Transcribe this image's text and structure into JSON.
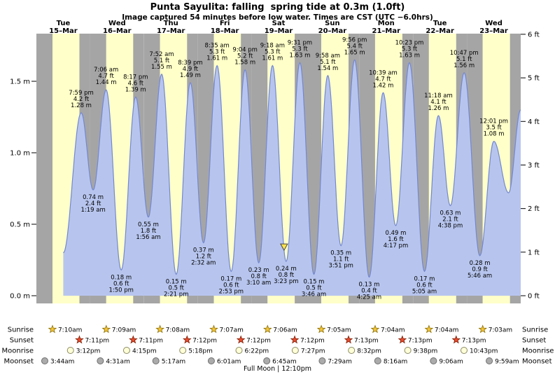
{
  "title": "Punta Sayulita: falling  spring tide at 0.3m (1.0ft)",
  "subtitle": "Image captured 54 minutes before low water. Times are CST (UTC −6.0hrs)",
  "chart_data": {
    "type": "area",
    "description": "Tide height curve over 9 days with high/low tide annotations",
    "grid": false,
    "ylim_m": [
      0,
      1.83
    ],
    "x_axis": {
      "days": [
        {
          "dow": "Tue",
          "date": "15–Mar"
        },
        {
          "dow": "Wed",
          "date": "16–Mar"
        },
        {
          "dow": "Thu",
          "date": "17–Mar"
        },
        {
          "dow": "Fri",
          "date": "18–Mar"
        },
        {
          "dow": "Sat",
          "date": "19–Mar"
        },
        {
          "dow": "Sun",
          "date": "20–Mar"
        },
        {
          "dow": "Mon",
          "date": "21–Mar"
        },
        {
          "dow": "Tue",
          "date": "22–Mar"
        },
        {
          "dow": "Wed",
          "date": "23–Mar"
        }
      ]
    },
    "y_axis_left": {
      "unit": "m",
      "ticks": [
        {
          "label": "1.5 m",
          "value": 1.5
        },
        {
          "label": "1.0 m",
          "value": 1.0
        },
        {
          "label": "0.5 m",
          "value": 0.5
        },
        {
          "label": "0.0 m",
          "value": 0.0
        }
      ]
    },
    "y_axis_right": {
      "unit": "ft",
      "ticks": [
        {
          "label": "6 ft",
          "value": 6
        },
        {
          "label": "5 ft",
          "value": 5
        },
        {
          "label": "4 ft",
          "value": 4
        },
        {
          "label": "3 ft",
          "value": 3
        },
        {
          "label": "2 ft",
          "value": 2
        },
        {
          "label": "1 ft",
          "value": 1
        },
        {
          "label": "0 ft",
          "value": 0
        }
      ]
    },
    "tide_events": [
      {
        "day": 0,
        "hour": 12.0,
        "height_m": 0.3,
        "type": "edge"
      },
      {
        "day": 0,
        "time": "7:59 pm",
        "height_m": 1.28,
        "height_ft": "4.2",
        "type": "high"
      },
      {
        "day": 1,
        "time": "1:19 am",
        "height_m": 0.74,
        "height_ft": "2.4",
        "type": "low"
      },
      {
        "day": 1,
        "time": "7:06 am",
        "height_m": 1.44,
        "height_ft": "4.7",
        "type": "high"
      },
      {
        "day": 1,
        "time": "1:50 pm",
        "height_m": 0.18,
        "height_ft": "0.6",
        "type": "low"
      },
      {
        "day": 1,
        "time": "8:17 pm",
        "height_m": 1.39,
        "height_ft": "4.6",
        "type": "high"
      },
      {
        "day": 2,
        "time": "1:56 am",
        "height_m": 0.55,
        "height_ft": "1.8",
        "type": "low"
      },
      {
        "day": 2,
        "time": "7:52 am",
        "height_m": 1.55,
        "height_ft": "5.1",
        "type": "high"
      },
      {
        "day": 2,
        "time": "2:21 pm",
        "height_m": 0.15,
        "height_ft": "0.5",
        "type": "low"
      },
      {
        "day": 2,
        "time": "8:39 pm",
        "height_m": 1.49,
        "height_ft": "4.9",
        "type": "high"
      },
      {
        "day": 3,
        "time": "2:32 am",
        "height_m": 0.37,
        "height_ft": "1.2",
        "type": "low"
      },
      {
        "day": 3,
        "time": "8:35 am",
        "height_m": 1.61,
        "height_ft": "5.3",
        "type": "high"
      },
      {
        "day": 3,
        "time": "2:53 pm",
        "height_m": 0.17,
        "height_ft": "0.6",
        "type": "low"
      },
      {
        "day": 3,
        "time": "9:04 pm",
        "height_m": 1.58,
        "height_ft": "5.2",
        "type": "high"
      },
      {
        "day": 4,
        "time": "3:10 am",
        "height_m": 0.23,
        "height_ft": "0.8",
        "type": "low"
      },
      {
        "day": 4,
        "time": "9:18 am",
        "height_m": 1.61,
        "height_ft": "5.3",
        "type": "high"
      },
      {
        "day": 4,
        "time": "3:23 pm",
        "height_m": 0.24,
        "height_ft": "0.8",
        "type": "low"
      },
      {
        "day": 4,
        "time": "9:31 pm",
        "height_m": 1.63,
        "height_ft": "5.3",
        "type": "high"
      },
      {
        "day": 5,
        "time": "3:46 am",
        "height_m": 0.15,
        "height_ft": "0.5",
        "type": "low"
      },
      {
        "day": 5,
        "time": "9:58 am",
        "height_m": 1.54,
        "height_ft": "5.1",
        "type": "high"
      },
      {
        "day": 5,
        "time": "3:51 pm",
        "height_m": 0.35,
        "height_ft": "1.1",
        "type": "low"
      },
      {
        "day": 5,
        "time": "9:56 pm",
        "height_m": 1.65,
        "height_ft": "5.4",
        "type": "high"
      },
      {
        "day": 6,
        "time": "4:25 am",
        "height_m": 0.13,
        "height_ft": "0.4",
        "type": "low"
      },
      {
        "day": 6,
        "time": "10:39 am",
        "height_m": 1.42,
        "height_ft": "4.7",
        "type": "high"
      },
      {
        "day": 6,
        "time": "4:17 pm",
        "height_m": 0.49,
        "height_ft": "1.6",
        "type": "low"
      },
      {
        "day": 6,
        "time": "10:23 pm",
        "height_m": 1.63,
        "height_ft": "5.3",
        "type": "high"
      },
      {
        "day": 7,
        "time": "5:05 am",
        "height_m": 0.17,
        "height_ft": "0.6",
        "type": "low"
      },
      {
        "day": 7,
        "time": "11:18 am",
        "height_m": 1.26,
        "height_ft": "4.1",
        "type": "high"
      },
      {
        "day": 7,
        "time": "4:38 pm",
        "height_m": 0.63,
        "height_ft": "2.1",
        "type": "low"
      },
      {
        "day": 7,
        "time": "10:47 pm",
        "height_m": 1.56,
        "height_ft": "5.1",
        "type": "high"
      },
      {
        "day": 8,
        "time": "5:46 am",
        "height_m": 0.28,
        "height_ft": "0.9",
        "type": "low"
      },
      {
        "day": 8,
        "time": "12:01 pm",
        "height_m": 1.08,
        "height_ft": "3.5",
        "type": "high"
      },
      {
        "day": 8,
        "hour": 18.6,
        "height_m": 0.72,
        "type": "edge"
      },
      {
        "day": 8,
        "hour": 24.0,
        "height_m": 1.3,
        "type": "edge"
      }
    ],
    "now_marker": {
      "day": 4,
      "hour": 14.48,
      "note": "54 minutes before low water"
    }
  },
  "sun_moon": {
    "rows": [
      {
        "key": "sunrise",
        "label": "Sunrise",
        "icon": "sunrise-star",
        "entries": [
          {
            "day": 0,
            "time": "7:10am"
          },
          {
            "day": 1,
            "time": "7:09am"
          },
          {
            "day": 2,
            "time": "7:08am"
          },
          {
            "day": 3,
            "time": "7:07am"
          },
          {
            "day": 4,
            "time": "7:06am"
          },
          {
            "day": 5,
            "time": "7:05am"
          },
          {
            "day": 6,
            "time": "7:04am"
          },
          {
            "day": 7,
            "time": "7:04am"
          },
          {
            "day": 8,
            "time": "7:03am"
          }
        ]
      },
      {
        "key": "sunset",
        "label": "Sunset",
        "icon": "sunset-star",
        "entries": [
          {
            "day": 0,
            "time": "7:11pm"
          },
          {
            "day": 1,
            "time": "7:11pm"
          },
          {
            "day": 2,
            "time": "7:12pm"
          },
          {
            "day": 3,
            "time": "7:12pm"
          },
          {
            "day": 4,
            "time": "7:12pm"
          },
          {
            "day": 5,
            "time": "7:13pm"
          },
          {
            "day": 6,
            "time": "7:13pm"
          },
          {
            "day": 7,
            "time": "7:13pm"
          }
        ]
      },
      {
        "key": "moonrise",
        "label": "Moonrise",
        "icon": "moonrise-circle",
        "entries": [
          {
            "day": 0,
            "time": "3:12pm"
          },
          {
            "day": 1,
            "time": "4:15pm"
          },
          {
            "day": 2,
            "time": "5:18pm"
          },
          {
            "day": 3,
            "time": "6:22pm"
          },
          {
            "day": 4,
            "time": "7:27pm"
          },
          {
            "day": 5,
            "time": "8:32pm"
          },
          {
            "day": 6,
            "time": "9:38pm"
          },
          {
            "day": 7,
            "time": "10:43pm"
          }
        ]
      },
      {
        "key": "moonset",
        "label": "Moonset",
        "icon": "moonset-circle",
        "entries": [
          {
            "day": 0,
            "time": "3:44am"
          },
          {
            "day": 1,
            "time": "4:31am"
          },
          {
            "day": 2,
            "time": "5:17am"
          },
          {
            "day": 3,
            "time": "6:01am"
          },
          {
            "day": 4,
            "time": "6:45am"
          },
          {
            "day": 5,
            "time": "7:29am"
          },
          {
            "day": 6,
            "time": "8:16am"
          },
          {
            "day": 7,
            "time": "9:06am"
          },
          {
            "day": 8,
            "time": "9:59am"
          }
        ]
      }
    ],
    "full_moon": "Full Moon | 12:10pm"
  },
  "colors": {
    "day_band": "#ffffc9",
    "night_band": "#a5a5a5",
    "tide_fill": "#b7c5ee",
    "tide_stroke": "#7387d2",
    "header_red": "#cc1100",
    "marker_yellow": "#ffe34d",
    "sunrise_star": "#f2c43c",
    "sunset_star": "#e84b2e",
    "moonrise_fill": "#ffffd8",
    "moonset_fill": "#ababab"
  }
}
